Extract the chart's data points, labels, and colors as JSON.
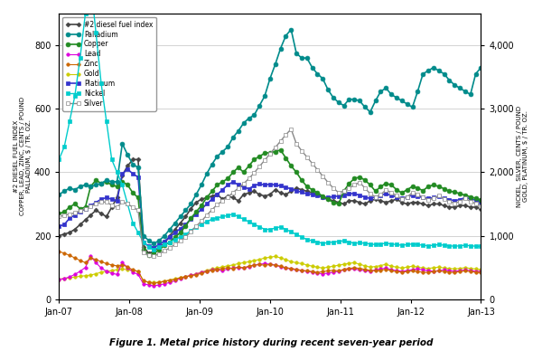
{
  "title": "Figure 1. Metal price history during recent seven-year period",
  "xlabels": [
    "Jan-07",
    "Jan-08",
    "Jan-09",
    "Jan-10",
    "Jan-11",
    "Jan-12",
    "Jan-13"
  ],
  "ylim_left": [
    0,
    900
  ],
  "ylim_right": [
    0,
    4500
  ],
  "yticks_left": [
    0,
    200,
    400,
    600,
    800
  ],
  "yticks_right": [
    0,
    1000,
    2000,
    3000,
    4000
  ],
  "background_color": "#ffffff",
  "grid_color": "#cccccc",
  "series": {
    "diesel": {
      "label": "#2 diesel fuel index",
      "color": "#444444",
      "marker": "D",
      "markersize": 2.5,
      "linewidth": 1.2,
      "axis": "left",
      "markerfacecolor": "#444444",
      "values": [
        200,
        205,
        210,
        220,
        235,
        250,
        265,
        280,
        270,
        260,
        290,
        320,
        390,
        420,
        440,
        440,
        165,
        145,
        150,
        165,
        175,
        200,
        220,
        240,
        260,
        285,
        305,
        315,
        320,
        325,
        330,
        315,
        325,
        320,
        310,
        330,
        335,
        340,
        330,
        325,
        330,
        345,
        335,
        330,
        340,
        350,
        345,
        340,
        335,
        330,
        320,
        315,
        310,
        305,
        300,
        310,
        310,
        305,
        300,
        310,
        315,
        310,
        305,
        310,
        315,
        305,
        300,
        305,
        305,
        300,
        295,
        300,
        300,
        295,
        290,
        290,
        295,
        295,
        290,
        290,
        285
      ]
    },
    "palladium": {
      "label": "Palladium",
      "color": "#008B8B",
      "marker": "o",
      "markersize": 3.5,
      "linewidth": 1.2,
      "axis": "left",
      "markerfacecolor": "#008B8B",
      "values": [
        330,
        340,
        350,
        345,
        355,
        360,
        355,
        360,
        365,
        375,
        370,
        370,
        490,
        455,
        425,
        415,
        200,
        185,
        175,
        185,
        200,
        220,
        240,
        260,
        280,
        300,
        330,
        360,
        395,
        425,
        450,
        465,
        480,
        510,
        530,
        555,
        570,
        580,
        610,
        640,
        695,
        740,
        790,
        830,
        850,
        775,
        760,
        760,
        730,
        710,
        695,
        660,
        635,
        620,
        610,
        630,
        630,
        625,
        605,
        590,
        625,
        655,
        665,
        645,
        635,
        625,
        615,
        605,
        655,
        710,
        720,
        730,
        720,
        710,
        690,
        675,
        665,
        655,
        645,
        710,
        730
      ]
    },
    "copper": {
      "label": "Copper",
      "color": "#228B22",
      "marker": "o",
      "markersize": 3.5,
      "linewidth": 1.2,
      "axis": "left",
      "markerfacecolor": "#228B22",
      "values": [
        270,
        275,
        290,
        300,
        285,
        290,
        355,
        375,
        365,
        370,
        360,
        355,
        370,
        360,
        335,
        320,
        155,
        140,
        145,
        155,
        170,
        180,
        195,
        210,
        230,
        255,
        275,
        295,
        320,
        340,
        360,
        370,
        380,
        400,
        415,
        400,
        420,
        440,
        450,
        460,
        462,
        465,
        470,
        445,
        420,
        400,
        375,
        355,
        345,
        335,
        325,
        315,
        305,
        300,
        340,
        365,
        380,
        385,
        375,
        360,
        340,
        355,
        365,
        360,
        345,
        335,
        345,
        355,
        350,
        342,
        355,
        360,
        355,
        348,
        340,
        338,
        332,
        328,
        322,
        318,
        312
      ]
    },
    "lead": {
      "label": "Lead",
      "color": "#DD00DD",
      "marker": "o",
      "markersize": 2.5,
      "linewidth": 0.8,
      "axis": "left",
      "markerfacecolor": "#DD00DD",
      "values": [
        62,
        65,
        70,
        78,
        88,
        100,
        135,
        115,
        98,
        88,
        82,
        78,
        115,
        100,
        85,
        78,
        48,
        45,
        42,
        45,
        48,
        53,
        58,
        65,
        70,
        75,
        78,
        85,
        88,
        92,
        93,
        90,
        95,
        98,
        100,
        98,
        102,
        108,
        110,
        112,
        110,
        108,
        102,
        98,
        95,
        92,
        90,
        88,
        85,
        82,
        80,
        82,
        85,
        88,
        92,
        95,
        95,
        92,
        90,
        88,
        92,
        95,
        98,
        93,
        90,
        88,
        90,
        93,
        95,
        92,
        90,
        88,
        90,
        92,
        90,
        88,
        90,
        92,
        90,
        88,
        87
      ]
    },
    "zinc": {
      "label": "Zinc",
      "color": "#CC6600",
      "marker": "o",
      "markersize": 2.5,
      "linewidth": 0.8,
      "axis": "left",
      "markerfacecolor": "#CC6600",
      "values": [
        150,
        145,
        138,
        130,
        122,
        115,
        130,
        125,
        118,
        112,
        108,
        105,
        108,
        102,
        92,
        88,
        58,
        53,
        50,
        53,
        56,
        60,
        63,
        67,
        71,
        74,
        77,
        81,
        87,
        91,
        94,
        97,
        99,
        97,
        101,
        99,
        104,
        107,
        109,
        107,
        109,
        107,
        104,
        99,
        97,
        94,
        91,
        89,
        87,
        84,
        87,
        89,
        91,
        89,
        94,
        97,
        99,
        97,
        94,
        91,
        89,
        91,
        94,
        89,
        87,
        85,
        87,
        89,
        87,
        85,
        84,
        87,
        89,
        87,
        85,
        84,
        87,
        89,
        87,
        85,
        84
      ]
    },
    "gold": {
      "label": "Gold",
      "color": "#CCCC00",
      "marker": "o",
      "markersize": 2.5,
      "linewidth": 0.8,
      "axis": "left",
      "markerfacecolor": "#CCCC00",
      "values": [
        63,
        65,
        67,
        70,
        72,
        74,
        76,
        80,
        85,
        88,
        90,
        93,
        95,
        93,
        90,
        88,
        57,
        54,
        52,
        54,
        57,
        60,
        64,
        68,
        71,
        75,
        80,
        85,
        91,
        95,
        98,
        102,
        105,
        108,
        112,
        115,
        118,
        122,
        125,
        130,
        132,
        135,
        130,
        125,
        118,
        115,
        112,
        108,
        104,
        101,
        98,
        101,
        104,
        107,
        110,
        113,
        115,
        110,
        105,
        101,
        103,
        106,
        110,
        104,
        101,
        98,
        101,
        104,
        101,
        98,
        97,
        99,
        101,
        98,
        97,
        95,
        97,
        99,
        97,
        95,
        93
      ]
    },
    "platinum": {
      "label": "Platinum",
      "color": "#3333CC",
      "marker": "s",
      "markersize": 3,
      "linewidth": 1.2,
      "axis": "left",
      "markerfacecolor": "#3333CC",
      "values": [
        230,
        235,
        255,
        265,
        275,
        285,
        295,
        305,
        315,
        320,
        315,
        310,
        395,
        410,
        395,
        385,
        178,
        168,
        163,
        172,
        183,
        196,
        210,
        222,
        235,
        253,
        268,
        283,
        300,
        315,
        330,
        345,
        360,
        370,
        360,
        353,
        348,
        358,
        363,
        360,
        362,
        360,
        357,
        352,
        348,
        342,
        337,
        332,
        330,
        327,
        322,
        320,
        323,
        325,
        328,
        332,
        333,
        327,
        322,
        317,
        322,
        328,
        332,
        327,
        322,
        317,
        322,
        328,
        324,
        320,
        317,
        320,
        323,
        318,
        314,
        310,
        314,
        320,
        317,
        312,
        307
      ]
    },
    "nickel": {
      "label": "Nickel",
      "color": "#00CCCC",
      "marker": "s",
      "markersize": 3.5,
      "linewidth": 1.0,
      "axis": "right",
      "markerfacecolor": "#00CCCC",
      "values": [
        2200,
        2400,
        2800,
        3200,
        3800,
        4500,
        5000,
        4200,
        3400,
        2800,
        2200,
        2000,
        1800,
        1500,
        1200,
        1050,
        900,
        820,
        780,
        820,
        860,
        900,
        940,
        980,
        1020,
        1080,
        1140,
        1180,
        1220,
        1260,
        1280,
        1300,
        1320,
        1340,
        1300,
        1260,
        1220,
        1180,
        1140,
        1100,
        1100,
        1120,
        1140,
        1100,
        1060,
        1020,
        980,
        940,
        920,
        900,
        880,
        890,
        900,
        910,
        920,
        900,
        880,
        890,
        880,
        870,
        860,
        870,
        880,
        870,
        860,
        850,
        860,
        870,
        860,
        850,
        840,
        850,
        860,
        850,
        840,
        835,
        840,
        850,
        840,
        835,
        830
      ]
    },
    "silver": {
      "label": "Silver",
      "color": "#888888",
      "marker": "s",
      "markersize": 3,
      "linewidth": 1.0,
      "axis": "right",
      "markerfacecolor": "white",
      "values": [
        1300,
        1320,
        1340,
        1360,
        1390,
        1420,
        1460,
        1500,
        1530,
        1530,
        1480,
        1450,
        1530,
        1500,
        1450,
        1400,
        740,
        690,
        680,
        715,
        760,
        810,
        860,
        920,
        980,
        1060,
        1150,
        1230,
        1320,
        1410,
        1490,
        1550,
        1610,
        1680,
        1750,
        1820,
        1900,
        1990,
        2090,
        2190,
        2290,
        2390,
        2490,
        2590,
        2680,
        2450,
        2340,
        2240,
        2140,
        2040,
        1940,
        1840,
        1750,
        1680,
        1700,
        1750,
        1800,
        1840,
        1750,
        1660,
        1610,
        1650,
        1720,
        1680,
        1630,
        1580,
        1610,
        1680,
        1650,
        1610,
        1560,
        1590,
        1630,
        1580,
        1540,
        1510,
        1540,
        1590,
        1540,
        1505,
        1470
      ]
    }
  }
}
